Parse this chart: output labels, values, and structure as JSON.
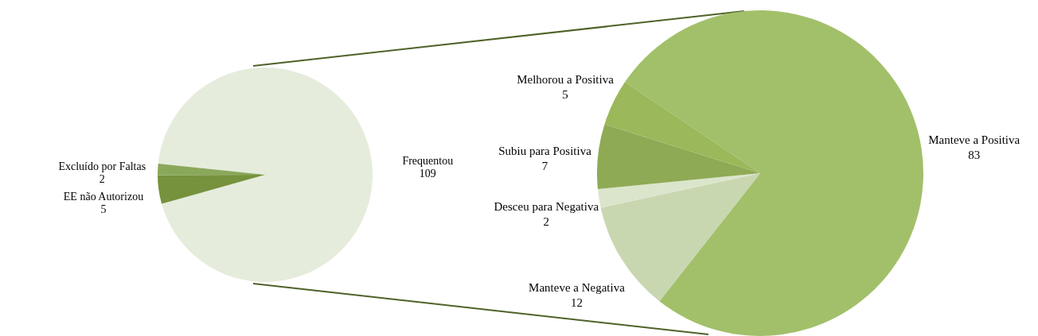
{
  "chart_data": [
    {
      "type": "pie",
      "categories": [
        "Frequentou",
        "EE não Autorizou",
        "Excluído por Faltas"
      ],
      "values": [
        109,
        5,
        2
      ],
      "colors": [
        "#e5ecdc",
        "#76923c",
        "#8aa85a"
      ],
      "data_labels": true
    },
    {
      "type": "pie",
      "categories": [
        "Manteve a Positiva",
        "Manteve a Negativa",
        "Desceu para Negativa",
        "Subiu para Positiva",
        "Melhorou a Positiva"
      ],
      "values": [
        83,
        12,
        2,
        7,
        5
      ],
      "colors": [
        "#a2c06a",
        "#c8d7b0",
        "#dbe5cc",
        "#8faa55",
        "#9bb85a"
      ],
      "data_labels": true
    }
  ]
}
